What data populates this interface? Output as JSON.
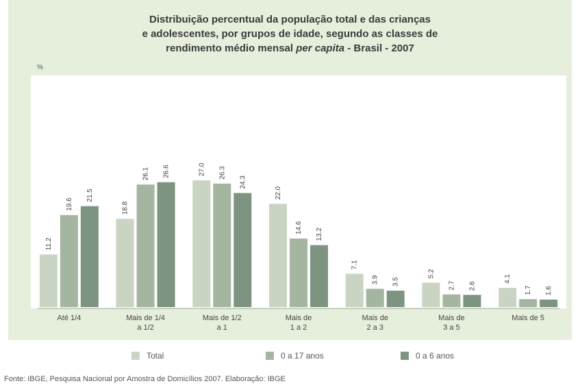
{
  "chart_data": {
    "type": "bar",
    "title_line1": "Distribuição percentual da população total e das crianças",
    "title_line2": "e adolescentes, por grupos de idade, segundo as classes de",
    "title_line3_pre": "rendimento médio mensal",
    "title_line3_italic": "per capita",
    "title_line3_post": "-  Brasil - 2007",
    "ylabel": "%",
    "ylim": [
      0,
      30
    ],
    "categories": [
      [
        "Até 1/4"
      ],
      [
        "Mais de 1/4",
        "a 1/2"
      ],
      [
        "Mais de 1/2",
        "a 1"
      ],
      [
        "Mais de",
        "1 a 2"
      ],
      [
        "Mais de",
        "2 a 3"
      ],
      [
        "Mais de",
        "3 a 5"
      ],
      [
        "Mais de 5"
      ]
    ],
    "series": [
      {
        "name": "Total",
        "color": "#c9d4c3",
        "values": [
          11.2,
          18.8,
          27.0,
          22.0,
          7.1,
          5.2,
          4.1
        ],
        "labels": [
          "11.2",
          "18.8",
          "27.0",
          "22.0",
          "7.1",
          "5.2",
          "4.1"
        ]
      },
      {
        "name": "0 a 17 anos",
        "color": "#a4b6a0",
        "values": [
          19.6,
          26.1,
          26.3,
          14.6,
          3.9,
          2.7,
          1.7
        ],
        "labels": [
          "19.6",
          "26.1",
          "26.3",
          "14.6",
          "3.9",
          "2.7",
          "1.7"
        ]
      },
      {
        "name": "0 a 6 anos",
        "color": "#7d9580",
        "values": [
          21.5,
          26.6,
          24.3,
          13.2,
          3.5,
          2.6,
          1.6
        ],
        "labels": [
          "21.5",
          "26.6",
          "24.3",
          "13.2",
          "3.5",
          "2.6",
          "1.6"
        ]
      }
    ],
    "legend_position": "bottom",
    "grid": false
  },
  "source": "Fonte: IBGE, Pesquisa Nacional por Amostra de Domicílios 2007. Elaboração: IBGE"
}
